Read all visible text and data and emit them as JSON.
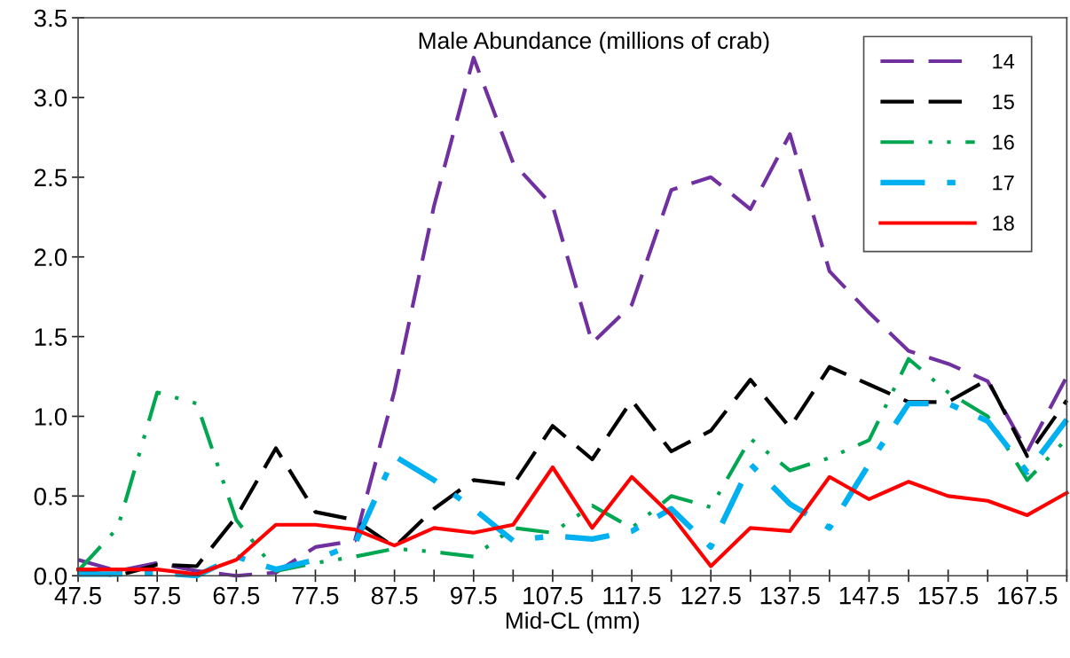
{
  "chart_data": {
    "type": "line",
    "title": "Male Abundance (millions of crab)",
    "xlabel": "Mid-CL (mm)",
    "x": [
      47.5,
      52.5,
      57.5,
      62.5,
      67.5,
      72.5,
      77.5,
      82.5,
      87.5,
      92.5,
      97.5,
      102.5,
      107.5,
      112.5,
      117.5,
      122.5,
      127.5,
      132.5,
      137.5,
      142.5,
      147.5,
      152.5,
      157.5,
      162.5,
      167.5,
      172.5
    ],
    "series": [
      {
        "name": "14",
        "color": "#7030a0",
        "line_style": "dashed",
        "values": [
          0.1,
          0.03,
          0.08,
          0.03,
          0.0,
          0.02,
          0.18,
          0.22,
          1.16,
          2.32,
          3.25,
          2.59,
          2.32,
          1.46,
          1.7,
          2.42,
          2.5,
          2.3,
          2.77,
          1.91,
          1.65,
          1.41,
          1.33,
          1.22,
          0.78,
          1.25
        ]
      },
      {
        "name": "15",
        "color": "#000000",
        "line_style": "dashed",
        "values": [
          0.03,
          0.0,
          0.07,
          0.06,
          0.37,
          0.8,
          0.4,
          0.35,
          0.18,
          0.42,
          0.6,
          0.57,
          0.94,
          0.73,
          1.1,
          0.78,
          0.91,
          1.23,
          0.93,
          1.31,
          1.2,
          1.09,
          1.09,
          1.23,
          0.75,
          1.1
        ]
      },
      {
        "name": "16",
        "color": "#00a650",
        "line_style": "dashdotdot",
        "values": [
          0.03,
          0.3,
          1.15,
          1.08,
          0.35,
          0.03,
          0.08,
          0.12,
          0.17,
          0.15,
          0.12,
          0.3,
          0.27,
          0.44,
          0.3,
          0.5,
          0.43,
          0.86,
          0.66,
          0.74,
          0.85,
          1.36,
          1.15,
          1.0,
          0.6,
          0.86
        ]
      },
      {
        "name": "17",
        "color": "#00b0f0",
        "line_style": "dashdot",
        "values": [
          0.01,
          0.01,
          0.02,
          0.0,
          0.12,
          0.04,
          0.1,
          0.2,
          0.75,
          0.6,
          0.42,
          0.22,
          0.25,
          0.23,
          0.28,
          0.42,
          0.18,
          0.7,
          0.45,
          0.3,
          0.7,
          1.08,
          1.08,
          0.97,
          0.65,
          0.98
        ]
      },
      {
        "name": "18",
        "color": "#ff0000",
        "line_style": "solid",
        "values": [
          0.04,
          0.04,
          0.04,
          0.01,
          0.1,
          0.32,
          0.32,
          0.29,
          0.19,
          0.3,
          0.27,
          0.32,
          0.68,
          0.3,
          0.62,
          0.38,
          0.06,
          0.3,
          0.28,
          0.62,
          0.48,
          0.59,
          0.5,
          0.47,
          0.38,
          0.52
        ]
      }
    ],
    "xlim": [
      47.5,
      172.5
    ],
    "xticks": [
      47.5,
      {
        "value": 52.5,
        "label": null
      },
      57.5,
      {
        "value": 62.5,
        "label": null
      },
      67.5,
      {
        "value": 72.5,
        "label": null
      },
      77.5,
      {
        "value": 82.5,
        "label": null
      },
      87.5,
      {
        "value": 92.5,
        "label": null
      },
      97.5,
      {
        "value": 102.5,
        "label": null
      },
      107.5,
      {
        "value": 112.5,
        "label": null
      },
      117.5,
      {
        "value": 122.5,
        "label": null
      },
      127.5,
      {
        "value": 132.5,
        "label": null
      },
      137.5,
      {
        "value": 142.5,
        "label": null
      },
      147.5,
      {
        "value": 152.5,
        "label": null
      },
      157.5,
      {
        "value": 162.5,
        "label": null
      },
      167.5,
      {
        "value": 172.5,
        "label": null
      }
    ],
    "ylim": [
      0,
      3.5
    ],
    "yticks": [
      {
        "value": 0,
        "label": "0.0"
      },
      {
        "value": 0.5,
        "label": "0.5"
      },
      {
        "value": 1,
        "label": "1.0"
      },
      {
        "value": 1.5,
        "label": "1.5"
      },
      {
        "value": 2,
        "label": "2.0"
      },
      {
        "value": 2.5,
        "label": "2.5"
      },
      {
        "value": 3,
        "label": "3.0"
      },
      {
        "value": 3.5,
        "label": "3.5"
      }
    ],
    "grid": false,
    "legend": "top right",
    "marker": "none"
  }
}
